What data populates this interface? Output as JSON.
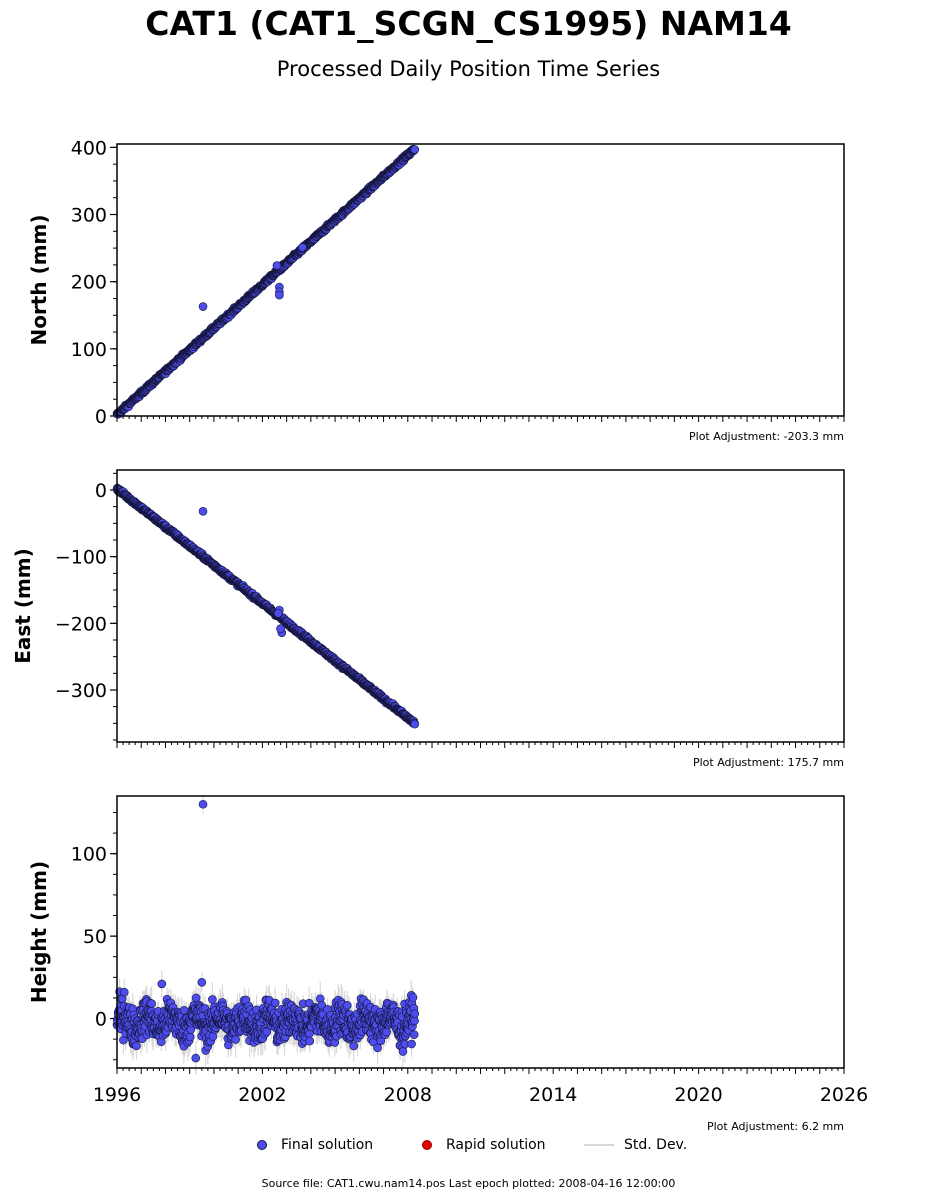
{
  "header": {
    "title": "CAT1 (CAT1_SCGN_CS1995) NAM14",
    "subtitle": "Processed Daily Position Time Series"
  },
  "footer": {
    "source": "Source file: CAT1.cwu.nam14.pos  Last epoch plotted: 2008-04-16 12:00:00"
  },
  "legend": {
    "final": "Final solution",
    "rapid": "Rapid solution",
    "stddev": "Std. Dev."
  },
  "colors": {
    "final_fill": "#4d4dee",
    "final_edge": "#15153a",
    "rapid_fill": "#dd0000",
    "stddev": "#d9d9d9"
  },
  "chart_data": [
    {
      "type": "scatter",
      "panel": "north",
      "ylabel": "North (mm)",
      "adjustment": "Plot Adjustment: -203.3 mm",
      "xlim": [
        1996,
        2026
      ],
      "ylim": [
        0,
        405
      ],
      "yticks": [
        0,
        100,
        200,
        300,
        400
      ],
      "series": [
        {
          "name": "Final solution",
          "trend": {
            "start": [
              1996.0,
              2
            ],
            "end": [
              2008.29,
              398
            ]
          },
          "noise": 2,
          "outliers": [
            [
              1999.55,
              163
            ],
            [
              2002.7,
              192
            ],
            [
              2002.7,
              185
            ],
            [
              2002.7,
              180
            ],
            [
              2002.6,
              224
            ],
            [
              2003.65,
              251
            ]
          ]
        }
      ]
    },
    {
      "type": "scatter",
      "panel": "east",
      "ylabel": "East (mm)",
      "adjustment": "Plot Adjustment: 175.7 mm",
      "xlim": [
        1996,
        2026
      ],
      "ylim": [
        -378,
        30
      ],
      "yticks": [
        0,
        -100,
        -200,
        -300
      ],
      "series": [
        {
          "name": "Final solution",
          "trend": {
            "start": [
              1996.0,
              2
            ],
            "end": [
              2008.29,
              -350
            ]
          },
          "noise": 2,
          "outliers": [
            [
              1999.55,
              -32
            ],
            [
              2002.8,
              -214
            ],
            [
              2002.75,
              -208
            ],
            [
              2002.7,
              -180
            ],
            [
              2002.65,
              -185
            ]
          ]
        }
      ]
    },
    {
      "type": "scatter",
      "panel": "height",
      "ylabel": "Height (mm)",
      "adjustment": "Plot Adjustment: 6.2 mm",
      "xlim": [
        1996,
        2026
      ],
      "ylim": [
        -30,
        135
      ],
      "yticks": [
        0,
        50,
        100
      ],
      "xticks": [
        1996,
        2002,
        2008,
        2014,
        2020,
        2026
      ],
      "series": [
        {
          "name": "Final solution",
          "trend": {
            "start": [
              1996.0,
              0
            ],
            "end": [
              2008.29,
              0
            ]
          },
          "noise": 8,
          "stddev": 8,
          "outliers": [
            [
              1999.55,
              130
            ],
            [
              1999.5,
              22
            ],
            [
              1996.3,
              16
            ],
            [
              1997.85,
              21
            ],
            [
              1999.25,
              -24
            ],
            [
              2007.8,
              -20
            ]
          ]
        }
      ]
    }
  ]
}
